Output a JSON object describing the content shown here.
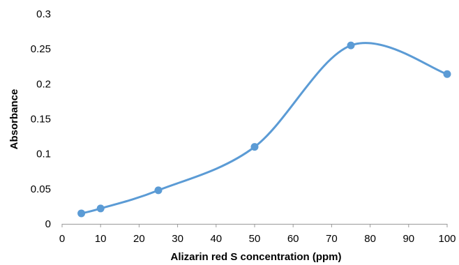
{
  "chart_data": {
    "type": "scatter",
    "title": "",
    "xlabel": "Alizarin red S concentration (ppm)",
    "ylabel": "Absorbance",
    "xlim": [
      0,
      100
    ],
    "ylim": [
      0,
      0.3
    ],
    "xticks": [
      "0",
      "10",
      "20",
      "30",
      "40",
      "50",
      "60",
      "70",
      "80",
      "90",
      "100"
    ],
    "yticks": [
      "0",
      "0.05",
      "0.1",
      "0.15",
      "0.2",
      "0.25",
      "0.3"
    ],
    "grid": false,
    "legend": "none",
    "smooth_line": true,
    "series": [
      {
        "x": [
          5,
          10,
          25,
          50,
          75,
          100
        ],
        "y": [
          0.015,
          0.022,
          0.048,
          0.11,
          0.255,
          0.214
        ],
        "color": "#5B9BD5"
      }
    ]
  }
}
